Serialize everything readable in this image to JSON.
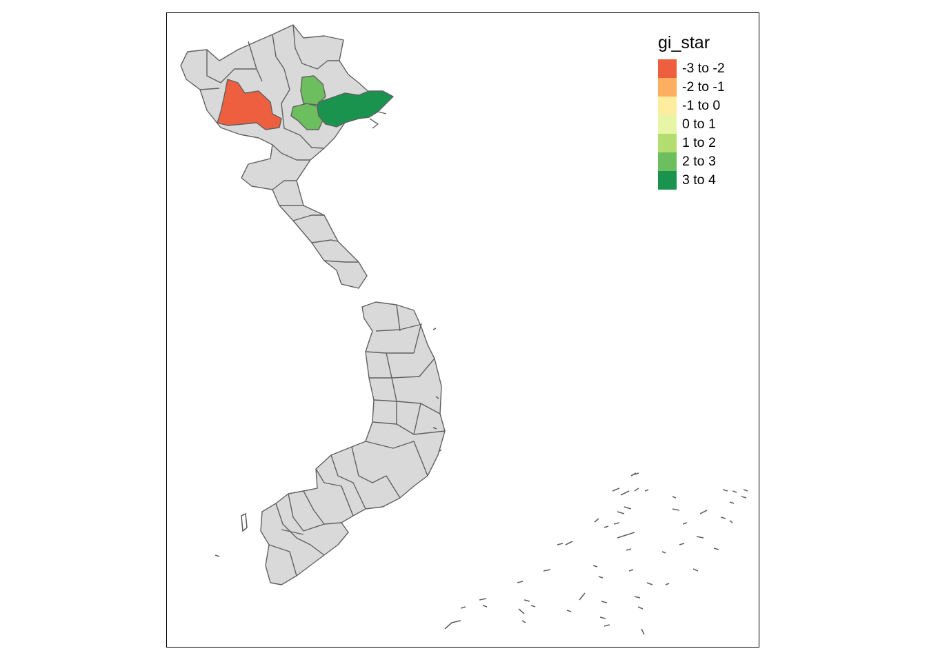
{
  "map": {
    "legend": {
      "title": "gi_star",
      "items": [
        {
          "label": "-3 to -2",
          "color": "#ee5f3f"
        },
        {
          "label": "-2 to -1",
          "color": "#fdae61"
        },
        {
          "label": "-1 to 0",
          "color": "#feec9f"
        },
        {
          "label": "0 to 1",
          "color": "#e6f5a6"
        },
        {
          "label": "1 to 2",
          "color": "#b3dd6f"
        },
        {
          "label": "2 to 3",
          "color": "#6dbe5f"
        },
        {
          "label": "3 to 4",
          "color": "#1a934e"
        }
      ]
    },
    "colors": {
      "default_fill": "#d9d9d9",
      "border": "#606060",
      "frame": "#000000",
      "background": "#ffffff"
    }
  }
}
